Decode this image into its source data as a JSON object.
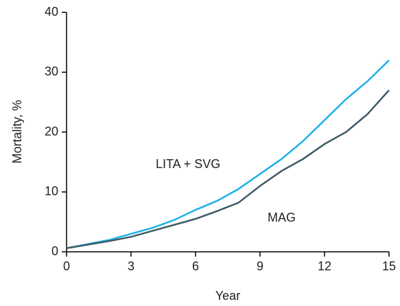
{
  "chart_data": {
    "type": "line",
    "x_label": "Year",
    "y_label": "Mortality, %",
    "x": [
      0,
      1,
      2,
      3,
      4,
      5,
      6,
      7,
      8,
      9,
      10,
      11,
      12,
      13,
      14,
      15
    ],
    "series": [
      {
        "name": "LITA + SVG",
        "color": "#1ab0e8",
        "values": [
          0.6,
          1.3,
          2.0,
          3.0,
          4.0,
          5.3,
          7.0,
          8.5,
          10.5,
          13.0,
          15.5,
          18.5,
          22.0,
          25.5,
          28.5,
          32.0
        ]
      },
      {
        "name": "MAG",
        "color": "#3d5a66",
        "values": [
          0.6,
          1.2,
          1.8,
          2.5,
          3.5,
          4.5,
          5.5,
          6.8,
          8.2,
          11.0,
          13.5,
          15.5,
          18.0,
          20.0,
          23.0,
          27.0
        ]
      }
    ],
    "xlim": [
      0,
      15
    ],
    "xticks": [
      0,
      3,
      6,
      9,
      12,
      15
    ],
    "ylim": [
      0,
      40
    ],
    "yticks": [
      0,
      10,
      20,
      30,
      40
    ],
    "grid": false
  }
}
